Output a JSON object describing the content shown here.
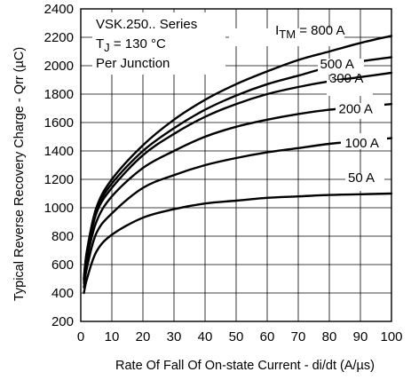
{
  "chart_data": {
    "type": "line",
    "xlabel": "Rate Of Fall Of On-state Current - di/dt (A/µs)",
    "ylabel": "Typical Reverse Recovery Charge - Qrr (µC)",
    "xlim": [
      0,
      100
    ],
    "ylim": [
      200,
      2400
    ],
    "x_ticks": [
      0,
      10,
      20,
      30,
      40,
      50,
      60,
      70,
      80,
      90,
      100
    ],
    "y_ticks": [
      200,
      400,
      600,
      800,
      1000,
      1200,
      1400,
      1600,
      1800,
      2000,
      2200,
      2400
    ],
    "grid": true,
    "annotations": {
      "line1": "VSK.250.. Series",
      "line2_prefix": "T",
      "line2_sub": "J",
      "line2_suffix": " = 130 °C",
      "line3": "Per Junction"
    },
    "series": [
      {
        "name_prefix": "I",
        "name_sub": "TM",
        "name": " = 800 A",
        "x": [
          1,
          2,
          5,
          10,
          20,
          30,
          40,
          50,
          60,
          70,
          80,
          90,
          100
        ],
        "y": [
          500,
          700,
          1000,
          1200,
          1440,
          1620,
          1760,
          1870,
          1960,
          2040,
          2100,
          2160,
          2210
        ]
      },
      {
        "name": "500 A",
        "x": [
          1,
          2,
          5,
          10,
          20,
          30,
          40,
          50,
          60,
          70,
          80,
          90,
          100
        ],
        "y": [
          500,
          690,
          980,
          1170,
          1400,
          1560,
          1690,
          1790,
          1870,
          1930,
          1990,
          2030,
          2060
        ]
      },
      {
        "name": "300 A",
        "x": [
          1,
          2,
          5,
          10,
          20,
          30,
          40,
          50,
          60,
          70,
          80,
          90,
          100
        ],
        "y": [
          490,
          670,
          960,
          1140,
          1370,
          1520,
          1640,
          1730,
          1800,
          1850,
          1890,
          1920,
          1950
        ]
      },
      {
        "name": "200 A",
        "x": [
          1,
          2,
          5,
          10,
          20,
          30,
          40,
          50,
          60,
          70,
          80,
          90,
          100
        ],
        "y": [
          470,
          640,
          900,
          1080,
          1280,
          1400,
          1500,
          1570,
          1620,
          1660,
          1690,
          1710,
          1730
        ]
      },
      {
        "name": "100 A",
        "x": [
          1,
          2,
          5,
          10,
          20,
          30,
          40,
          50,
          60,
          70,
          80,
          90,
          100
        ],
        "y": [
          440,
          580,
          820,
          960,
          1140,
          1230,
          1300,
          1350,
          1390,
          1420,
          1450,
          1470,
          1490
        ]
      },
      {
        "name": "50 A",
        "x": [
          1,
          2,
          5,
          10,
          20,
          30,
          40,
          50,
          60,
          70,
          80,
          90,
          100
        ],
        "y": [
          400,
          500,
          690,
          810,
          930,
          990,
          1030,
          1050,
          1070,
          1080,
          1090,
          1095,
          1100
        ]
      }
    ]
  }
}
